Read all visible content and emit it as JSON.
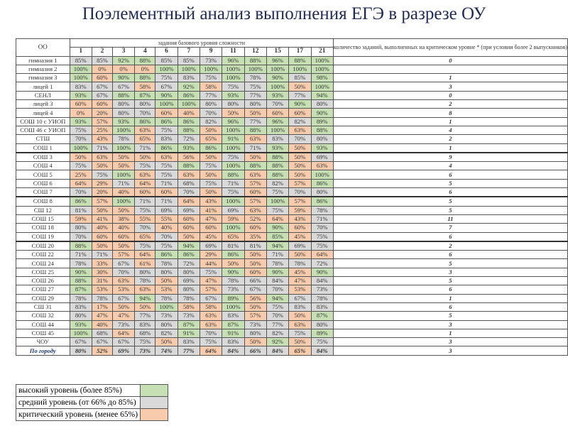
{
  "title": "Поэлементный анализ выполнения ЕГЭ в разрезе ОУ",
  "table": {
    "col_oo": "ОО",
    "group_header": "задания базового уровня сложности",
    "task_numbers": [
      "1",
      "2",
      "3",
      "4",
      "6",
      "7",
      "9",
      "11",
      "12",
      "15",
      "17",
      "21"
    ],
    "crit_header": "количество заданий, выполненных на критическом уровне * (при условии более 2 выпускников)",
    "rows": [
      {
        "name": "гимназия 1",
        "values": [
          "85%",
          "85%",
          "92%",
          "88%",
          "85%",
          "85%",
          "73%",
          "96%",
          "88%",
          "96%",
          "88%",
          "100%"
        ],
        "levels": [
          "mid",
          "mid",
          "hi",
          "hi",
          "mid",
          "mid",
          "mid",
          "hi",
          "hi",
          "hi",
          "hi",
          "hi"
        ],
        "count": "0"
      },
      {
        "name": "гимназия 2",
        "values": [
          "100%",
          "0%",
          "0%",
          "0%",
          "100%",
          "100%",
          "100%",
          "100%",
          "100%",
          "100%",
          "100%",
          "100%"
        ],
        "levels": [
          "hi",
          "lo",
          "lo",
          "lo",
          "hi",
          "hi",
          "hi",
          "hi",
          "hi",
          "hi",
          "hi",
          "hi"
        ],
        "count": ""
      },
      {
        "name": "гимназия 3",
        "values": [
          "100%",
          "60%",
          "90%",
          "88%",
          "75%",
          "83%",
          "75%",
          "100%",
          "78%",
          "90%",
          "85%",
          "98%"
        ],
        "levels": [
          "hi",
          "lo",
          "hi",
          "hi",
          "mid",
          "mid",
          "mid",
          "hi",
          "mid",
          "hi",
          "mid",
          "hi"
        ],
        "count": "1"
      },
      {
        "name": "лицей 1",
        "values": [
          "83%",
          "67%",
          "67%",
          "58%",
          "67%",
          "92%",
          "58%",
          "75%",
          "75%",
          "100%",
          "50%",
          "100%"
        ],
        "levels": [
          "mid",
          "mid",
          "mid",
          "lo",
          "mid",
          "hi",
          "lo",
          "mid",
          "mid",
          "hi",
          "lo",
          "hi"
        ],
        "count": "3"
      },
      {
        "name": "СЕНЛ",
        "values": [
          "93%",
          "67%",
          "88%",
          "87%",
          "90%",
          "86%",
          "77%",
          "93%",
          "77%",
          "93%",
          "77%",
          "94%"
        ],
        "levels": [
          "hi",
          "mid",
          "hi",
          "hi",
          "hi",
          "hi",
          "mid",
          "hi",
          "mid",
          "hi",
          "mid",
          "hi"
        ],
        "count": "0"
      },
      {
        "name": "лицей 3",
        "values": [
          "60%",
          "60%",
          "80%",
          "80%",
          "100%",
          "100%",
          "80%",
          "80%",
          "80%",
          "70%",
          "90%",
          "80%"
        ],
        "levels": [
          "lo",
          "lo",
          "mid",
          "mid",
          "hi",
          "hi",
          "mid",
          "mid",
          "mid",
          "mid",
          "hi",
          "mid"
        ],
        "count": "2"
      },
      {
        "name": "лицей 4",
        "values": [
          "0%",
          "20%",
          "80%",
          "70%",
          "60%",
          "40%",
          "70%",
          "50%",
          "50%",
          "60%",
          "60%",
          "90%"
        ],
        "levels": [
          "lo",
          "lo",
          "mid",
          "mid",
          "lo",
          "lo",
          "mid",
          "lo",
          "lo",
          "lo",
          "lo",
          "hi"
        ],
        "count": "8"
      },
      {
        "name": "СОШ 10 с УИОП",
        "values": [
          "93%",
          "57%",
          "93%",
          "86%",
          "86%",
          "86%",
          "82%",
          "96%",
          "77%",
          "96%",
          "82%",
          "89%"
        ],
        "levels": [
          "hi",
          "lo",
          "hi",
          "hi",
          "hi",
          "hi",
          "mid",
          "hi",
          "mid",
          "hi",
          "mid",
          "hi"
        ],
        "count": "1"
      },
      {
        "name": "СОШ 46 с УИОП",
        "values": [
          "75%",
          "25%",
          "100%",
          "63%",
          "75%",
          "88%",
          "50%",
          "100%",
          "88%",
          "100%",
          "63%",
          "88%"
        ],
        "levels": [
          "mid",
          "lo",
          "hi",
          "lo",
          "mid",
          "hi",
          "lo",
          "hi",
          "hi",
          "hi",
          "lo",
          "hi"
        ],
        "count": "4"
      },
      {
        "name": "СТШ",
        "values": [
          "70%",
          "43%",
          "78%",
          "65%",
          "83%",
          "72%",
          "65%",
          "91%",
          "63%",
          "83%",
          "70%",
          "80%"
        ],
        "levels": [
          "mid",
          "lo",
          "mid",
          "lo",
          "mid",
          "mid",
          "lo",
          "hi",
          "lo",
          "mid",
          "mid",
          "mid"
        ],
        "count": "2"
      },
      {
        "name": "СОШ 1",
        "values": [
          "100%",
          "71%",
          "100%",
          "71%",
          "86%",
          "93%",
          "86%",
          "100%",
          "71%",
          "93%",
          "50%",
          "93%"
        ],
        "levels": [
          "hi",
          "mid",
          "hi",
          "mid",
          "hi",
          "hi",
          "hi",
          "hi",
          "mid",
          "hi",
          "lo",
          "hi"
        ],
        "count": "1"
      },
      {
        "name": "СОШ 3",
        "values": [
          "50%",
          "63%",
          "50%",
          "50%",
          "63%",
          "56%",
          "50%",
          "75%",
          "50%",
          "88%",
          "50%",
          "69%"
        ],
        "levels": [
          "lo",
          "lo",
          "lo",
          "lo",
          "lo",
          "lo",
          "lo",
          "mid",
          "lo",
          "hi",
          "lo",
          "mid"
        ],
        "count": "9",
        "thick": true
      },
      {
        "name": "СОШ 4",
        "values": [
          "75%",
          "50%",
          "50%",
          "75%",
          "75%",
          "88%",
          "75%",
          "100%",
          "88%",
          "88%",
          "50%",
          "63%"
        ],
        "levels": [
          "mid",
          "lo",
          "lo",
          "mid",
          "mid",
          "hi",
          "mid",
          "hi",
          "hi",
          "hi",
          "lo",
          "lo"
        ],
        "count": "4"
      },
      {
        "name": "СОШ 5",
        "values": [
          "25%",
          "75%",
          "100%",
          "63%",
          "75%",
          "63%",
          "50%",
          "88%",
          "63%",
          "88%",
          "50%",
          "100%"
        ],
        "levels": [
          "lo",
          "mid",
          "hi",
          "lo",
          "mid",
          "lo",
          "lo",
          "hi",
          "lo",
          "hi",
          "lo",
          "hi"
        ],
        "count": "6"
      },
      {
        "name": "СОШ 6",
        "values": [
          "64%",
          "29%",
          "71%",
          "64%",
          "71%",
          "68%",
          "75%",
          "71%",
          "57%",
          "82%",
          "57%",
          "86%"
        ],
        "levels": [
          "lo",
          "lo",
          "mid",
          "lo",
          "mid",
          "mid",
          "mid",
          "mid",
          "lo",
          "mid",
          "lo",
          "hi"
        ],
        "count": "5"
      },
      {
        "name": "СОШ 7",
        "values": [
          "70%",
          "20%",
          "40%",
          "60%",
          "60%",
          "70%",
          "50%",
          "75%",
          "60%",
          "75%",
          "70%",
          "80%"
        ],
        "levels": [
          "mid",
          "lo",
          "lo",
          "lo",
          "lo",
          "mid",
          "lo",
          "mid",
          "lo",
          "mid",
          "mid",
          "mid"
        ],
        "count": "6"
      },
      {
        "name": "СОШ 8",
        "values": [
          "86%",
          "57%",
          "100%",
          "71%",
          "71%",
          "64%",
          "43%",
          "100%",
          "57%",
          "100%",
          "57%",
          "86%"
        ],
        "levels": [
          "hi",
          "lo",
          "hi",
          "mid",
          "mid",
          "lo",
          "lo",
          "hi",
          "lo",
          "hi",
          "lo",
          "hi"
        ],
        "count": "5",
        "thick": true
      },
      {
        "name": "СШ 12",
        "values": [
          "81%",
          "50%",
          "50%",
          "75%",
          "69%",
          "69%",
          "41%",
          "69%",
          "63%",
          "75%",
          "59%",
          "78%"
        ],
        "levels": [
          "mid",
          "lo",
          "lo",
          "mid",
          "mid",
          "mid",
          "lo",
          "mid",
          "lo",
          "mid",
          "lo",
          "mid"
        ],
        "count": "5"
      },
      {
        "name": "СОШ 15",
        "values": [
          "59%",
          "41%",
          "38%",
          "55%",
          "55%",
          "60%",
          "47%",
          "59%",
          "52%",
          "64%",
          "43%",
          "71%"
        ],
        "levels": [
          "lo",
          "lo",
          "lo",
          "lo",
          "lo",
          "lo",
          "lo",
          "lo",
          "lo",
          "lo",
          "lo",
          "mid"
        ],
        "count": "11"
      },
      {
        "name": "СОШ 18",
        "values": [
          "80%",
          "40%",
          "40%",
          "70%",
          "40%",
          "60%",
          "60%",
          "100%",
          "60%",
          "90%",
          "60%",
          "70%"
        ],
        "levels": [
          "mid",
          "lo",
          "lo",
          "mid",
          "lo",
          "lo",
          "lo",
          "hi",
          "lo",
          "hi",
          "lo",
          "mid"
        ],
        "count": "7"
      },
      {
        "name": "СОШ 19",
        "values": [
          "70%",
          "60%",
          "60%",
          "65%",
          "70%",
          "50%",
          "45%",
          "65%",
          "35%",
          "85%",
          "45%",
          "75%"
        ],
        "levels": [
          "mid",
          "lo",
          "lo",
          "lo",
          "mid",
          "lo",
          "lo",
          "lo",
          "lo",
          "hi",
          "lo",
          "mid"
        ],
        "count": "6"
      },
      {
        "name": "СОШ 20",
        "values": [
          "88%",
          "50%",
          "50%",
          "75%",
          "75%",
          "94%",
          "69%",
          "81%",
          "81%",
          "94%",
          "69%",
          "75%"
        ],
        "levels": [
          "hi",
          "lo",
          "lo",
          "mid",
          "mid",
          "hi",
          "mid",
          "mid",
          "mid",
          "hi",
          "mid",
          "mid"
        ],
        "count": "2",
        "thick": true
      },
      {
        "name": "СОШ 22",
        "values": [
          "71%",
          "71%",
          "57%",
          "64%",
          "86%",
          "86%",
          "29%",
          "86%",
          "50%",
          "71%",
          "50%",
          "64%"
        ],
        "levels": [
          "mid",
          "mid",
          "lo",
          "lo",
          "hi",
          "hi",
          "lo",
          "hi",
          "lo",
          "mid",
          "lo",
          "lo"
        ],
        "count": "6"
      },
      {
        "name": "СОШ 24",
        "values": [
          "78%",
          "33%",
          "67%",
          "61%",
          "78%",
          "72%",
          "44%",
          "50%",
          "50%",
          "78%",
          "78%",
          "72%"
        ],
        "levels": [
          "mid",
          "lo",
          "mid",
          "lo",
          "mid",
          "mid",
          "lo",
          "lo",
          "lo",
          "mid",
          "mid",
          "mid"
        ],
        "count": "5"
      },
      {
        "name": "СОШ 25",
        "values": [
          "90%",
          "30%",
          "70%",
          "80%",
          "80%",
          "80%",
          "75%",
          "90%",
          "60%",
          "90%",
          "45%",
          "90%"
        ],
        "levels": [
          "hi",
          "lo",
          "mid",
          "mid",
          "mid",
          "mid",
          "mid",
          "hi",
          "lo",
          "hi",
          "lo",
          "hi"
        ],
        "count": "3"
      },
      {
        "name": "СОШ 26",
        "values": [
          "88%",
          "31%",
          "63%",
          "78%",
          "50%",
          "69%",
          "47%",
          "78%",
          "66%",
          "84%",
          "47%",
          "84%"
        ],
        "levels": [
          "hi",
          "lo",
          "lo",
          "mid",
          "lo",
          "mid",
          "lo",
          "mid",
          "mid",
          "mid",
          "lo",
          "mid"
        ],
        "count": "5"
      },
      {
        "name": "СОШ 27",
        "values": [
          "87%",
          "53%",
          "53%",
          "63%",
          "53%",
          "80%",
          "57%",
          "73%",
          "67%",
          "70%",
          "53%",
          "73%"
        ],
        "levels": [
          "hi",
          "lo",
          "lo",
          "lo",
          "lo",
          "mid",
          "lo",
          "mid",
          "mid",
          "mid",
          "lo",
          "mid"
        ],
        "count": "6"
      },
      {
        "name": "СОШ 29",
        "values": [
          "78%",
          "78%",
          "67%",
          "94%",
          "78%",
          "78%",
          "67%",
          "89%",
          "56%",
          "94%",
          "67%",
          "78%"
        ],
        "levels": [
          "mid",
          "mid",
          "mid",
          "hi",
          "mid",
          "mid",
          "mid",
          "hi",
          "lo",
          "hi",
          "mid",
          "mid"
        ],
        "count": "1"
      },
      {
        "name": "СШ 31",
        "values": [
          "83%",
          "17%",
          "50%",
          "50%",
          "100%",
          "58%",
          "58%",
          "100%",
          "50%",
          "75%",
          "83%",
          "83%"
        ],
        "levels": [
          "mid",
          "lo",
          "lo",
          "lo",
          "hi",
          "lo",
          "lo",
          "hi",
          "lo",
          "mid",
          "mid",
          "mid"
        ],
        "count": "6"
      },
      {
        "name": "СОШ 32",
        "values": [
          "80%",
          "47%",
          "47%",
          "77%",
          "73%",
          "73%",
          "63%",
          "83%",
          "57%",
          "70%",
          "50%",
          "87%"
        ],
        "levels": [
          "mid",
          "lo",
          "lo",
          "mid",
          "mid",
          "mid",
          "lo",
          "mid",
          "lo",
          "mid",
          "lo",
          "hi"
        ],
        "count": "5"
      },
      {
        "name": "СОШ 44",
        "values": [
          "93%",
          "40%",
          "73%",
          "83%",
          "80%",
          "87%",
          "63%",
          "87%",
          "73%",
          "77%",
          "63%",
          "80%"
        ],
        "levels": [
          "hi",
          "lo",
          "mid",
          "mid",
          "mid",
          "hi",
          "lo",
          "hi",
          "mid",
          "mid",
          "lo",
          "mid"
        ],
        "count": "3"
      },
      {
        "name": "СОШ 45",
        "values": [
          "100%",
          "68%",
          "64%",
          "68%",
          "82%",
          "91%",
          "70%",
          "91%",
          "80%",
          "82%",
          "75%",
          "89%"
        ],
        "levels": [
          "hi",
          "mid",
          "lo",
          "mid",
          "mid",
          "hi",
          "mid",
          "hi",
          "mid",
          "mid",
          "mid",
          "hi"
        ],
        "count": "1"
      },
      {
        "name": "ЧОУ",
        "values": [
          "67%",
          "67%",
          "67%",
          "75%",
          "50%",
          "83%",
          "75%",
          "83%",
          "50%",
          "92%",
          "50%",
          "75%"
        ],
        "levels": [
          "mid",
          "mid",
          "mid",
          "mid",
          "lo",
          "mid",
          "mid",
          "mid",
          "lo",
          "hi",
          "lo",
          "mid"
        ],
        "count": "3"
      }
    ],
    "total": {
      "name": "По городу",
      "values": [
        "80%",
        "52%",
        "69%",
        "73%",
        "74%",
        "77%",
        "64%",
        "84%",
        "66%",
        "84%",
        "65%",
        "84%"
      ],
      "levels": [
        "mid",
        "lo",
        "mid",
        "mid",
        "mid",
        "mid",
        "lo",
        "mid",
        "mid",
        "mid",
        "lo",
        "mid"
      ],
      "count": "3"
    }
  },
  "legend": [
    {
      "label": "высокий уровень (более 85%)",
      "level": "hi",
      "color": "#c6e0b4"
    },
    {
      "label": "средний уровень (от 66% до 85%)",
      "level": "mid",
      "color": "#d9d9d9"
    },
    {
      "label": "критический уровень (менее 65%)",
      "level": "lo",
      "color": "#f8cbad"
    }
  ]
}
